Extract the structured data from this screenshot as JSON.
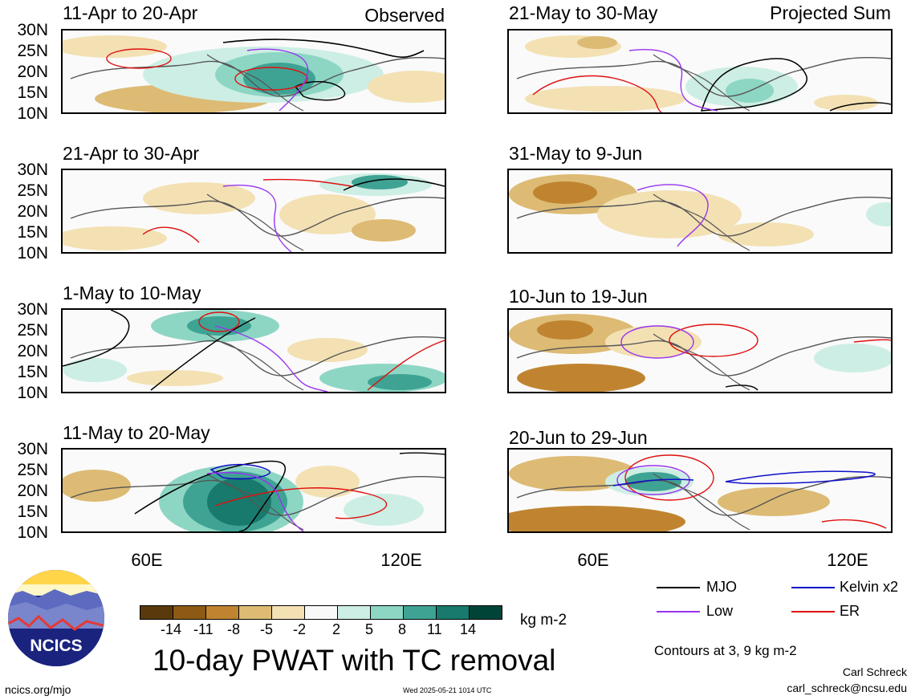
{
  "colors": {
    "mjo": "#000000",
    "kelvin": "#1010c8",
    "low": "#9933ee",
    "er": "#e01010",
    "scale": [
      "#5a3a0c",
      "#8c5a14",
      "#c08430",
      "#ddbb74",
      "#f3e1b4",
      "#f8f8f8",
      "#cdeee4",
      "#8dd6c4",
      "#3fa394",
      "#177a6c",
      "#004438"
    ],
    "coast": "#555555"
  },
  "panels": [
    {
      "title": "11-Apr to 20-Apr",
      "tag": "Observed"
    },
    {
      "title": "21-May to 30-May",
      "tag": "Projected Sum"
    },
    {
      "title": "21-Apr to 30-Apr",
      "tag": ""
    },
    {
      "title": "31-May to 9-Jun",
      "tag": ""
    },
    {
      "title": "1-May to 10-May",
      "tag": ""
    },
    {
      "title": "10-Jun to 19-Jun",
      "tag": ""
    },
    {
      "title": "11-May to 20-May",
      "tag": ""
    },
    {
      "title": "20-Jun to 29-Jun",
      "tag": ""
    }
  ],
  "lat_labels": [
    "30N",
    "25N",
    "20N",
    "15N",
    "10N"
  ],
  "lon_labels": [
    "60E",
    "120E"
  ],
  "colorbar": {
    "labels": [
      "-14",
      "-11",
      "-8",
      "-5",
      "-2",
      "2",
      "5",
      "8",
      "11",
      "14"
    ],
    "units": "kg m-2"
  },
  "title": "10-day PWAT with TC removal",
  "legend": {
    "mjo": "MJO",
    "kelvin": "Kelvin x2",
    "low": "Low",
    "er": "ER",
    "contours": "Contours at 3, 9 kg m-2"
  },
  "logo": {
    "text": "NCICS"
  },
  "footer": {
    "url": "ncics.org/mjo",
    "timestamp": "Wed 2025-05-21 1014 UTC",
    "author": "Carl Schreck",
    "email": "carl_schreck@ncsu.edu"
  }
}
